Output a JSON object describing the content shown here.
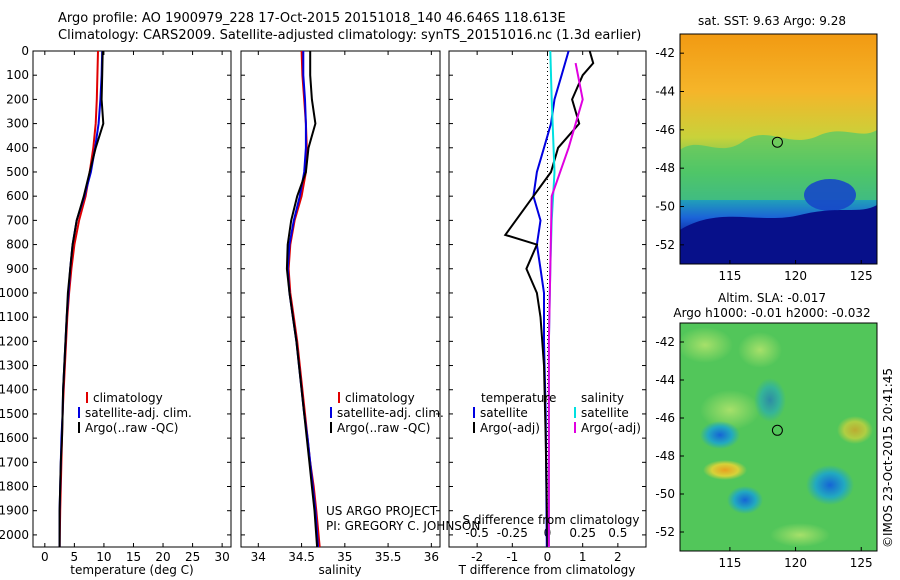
{
  "header": {
    "line1": "Argo profile: AO 1900979_228 17-Oct-2015 20151018_140 46.646S 118.613E",
    "line2": "Climatology: CARS2009. Satellite-adjusted climatology: synTS_20151016.nc (1.3d earlier)"
  },
  "colors": {
    "climatology": "#e00000",
    "satellite": "#0000e0",
    "argo": "#000000",
    "sat_salinity": "#00e0e0",
    "argo_adj_salinity": "#e000e0"
  },
  "chart_data": [
    {
      "type": "line",
      "xlabel": "temperature (deg C)",
      "xticks": [
        "0",
        "5",
        "10",
        "15",
        "20",
        "25",
        "30"
      ],
      "xlim": [
        -2,
        31.5
      ],
      "ylim": [
        0,
        2050
      ],
      "yticks": [
        "0",
        "100",
        "200",
        "300",
        "400",
        "500",
        "600",
        "700",
        "800",
        "900",
        "1000",
        "1100",
        "1200",
        "1300",
        "1400",
        "1500",
        "1600",
        "1700",
        "1800",
        "1900",
        "2000"
      ],
      "legend": [
        "climatology",
        "satellite-adj. clim.",
        "Argo(..raw -QC)"
      ],
      "series": [
        {
          "name": "climatology",
          "color": "#e00000",
          "points": [
            [
              9.0,
              0
            ],
            [
              8.9,
              100
            ],
            [
              8.8,
              200
            ],
            [
              8.6,
              300
            ],
            [
              8.2,
              400
            ],
            [
              7.6,
              500
            ],
            [
              6.9,
              600
            ],
            [
              5.8,
              700
            ],
            [
              5.0,
              800
            ],
            [
              4.5,
              900
            ],
            [
              4.1,
              1000
            ],
            [
              3.8,
              1100
            ],
            [
              3.6,
              1200
            ],
            [
              3.4,
              1300
            ],
            [
              3.2,
              1400
            ],
            [
              3.0,
              1500
            ],
            [
              2.9,
              1600
            ],
            [
              2.8,
              1700
            ],
            [
              2.7,
              1800
            ],
            [
              2.6,
              1900
            ],
            [
              2.5,
              2050
            ]
          ]
        },
        {
          "name": "satellite-adj. clim.",
          "color": "#0000e0",
          "points": [
            [
              9.7,
              0
            ],
            [
              9.6,
              100
            ],
            [
              9.4,
              200
            ],
            [
              9.1,
              300
            ],
            [
              8.5,
              400
            ],
            [
              7.8,
              500
            ],
            [
              6.7,
              600
            ],
            [
              5.4,
              700
            ],
            [
              4.7,
              800
            ],
            [
              4.3,
              900
            ],
            [
              4.0,
              1000
            ],
            [
              3.7,
              1100
            ],
            [
              3.5,
              1200
            ],
            [
              3.3,
              1300
            ],
            [
              3.1,
              1400
            ],
            [
              3.0,
              1500
            ],
            [
              2.8,
              1600
            ],
            [
              2.7,
              1700
            ],
            [
              2.6,
              1800
            ],
            [
              2.5,
              1900
            ],
            [
              2.5,
              2050
            ]
          ]
        },
        {
          "name": "Argo(..raw -QC)",
          "color": "#000000",
          "points": [
            [
              9.8,
              0
            ],
            [
              9.7,
              100
            ],
            [
              9.6,
              200
            ],
            [
              9.9,
              300
            ],
            [
              8.6,
              400
            ],
            [
              7.6,
              500
            ],
            [
              6.6,
              600
            ],
            [
              5.4,
              700
            ],
            [
              4.7,
              800
            ],
            [
              4.3,
              900
            ],
            [
              3.9,
              1000
            ],
            [
              3.7,
              1100
            ],
            [
              3.5,
              1200
            ],
            [
              3.3,
              1300
            ],
            [
              3.1,
              1400
            ],
            [
              3.0,
              1500
            ],
            [
              2.9,
              1600
            ],
            [
              2.7,
              1700
            ],
            [
              2.6,
              1800
            ],
            [
              2.5,
              1900
            ],
            [
              2.5,
              2050
            ]
          ]
        }
      ]
    },
    {
      "type": "line",
      "xlabel": "salinity",
      "xticks": [
        "34",
        "34.5",
        "35",
        "35.5",
        "36"
      ],
      "xlim": [
        33.8,
        36.1
      ],
      "ylim": [
        0,
        2050
      ],
      "legend": [
        "climatology",
        "satellite-adj. clim.",
        "Argo(..raw -QC)"
      ],
      "annotations": [
        "US ARGO PROJECT",
        "PI: GREGORY C. JOHNSON"
      ],
      "series": [
        {
          "name": "climatology",
          "color": "#e00000",
          "points": [
            [
              34.5,
              0
            ],
            [
              34.51,
              100
            ],
            [
              34.53,
              200
            ],
            [
              34.55,
              300
            ],
            [
              34.56,
              400
            ],
            [
              34.55,
              500
            ],
            [
              34.5,
              600
            ],
            [
              34.42,
              700
            ],
            [
              34.37,
              800
            ],
            [
              34.35,
              900
            ],
            [
              34.37,
              1000
            ],
            [
              34.41,
              1100
            ],
            [
              34.45,
              1200
            ],
            [
              34.48,
              1300
            ],
            [
              34.51,
              1400
            ],
            [
              34.54,
              1500
            ],
            [
              34.57,
              1600
            ],
            [
              34.6,
              1700
            ],
            [
              34.64,
              1800
            ],
            [
              34.67,
              1900
            ],
            [
              34.71,
              2050
            ]
          ]
        },
        {
          "name": "satellite-adj. clim.",
          "color": "#0000e0",
          "points": [
            [
              34.52,
              0
            ],
            [
              34.52,
              100
            ],
            [
              34.54,
              200
            ],
            [
              34.55,
              300
            ],
            [
              34.55,
              400
            ],
            [
              34.53,
              500
            ],
            [
              34.48,
              600
            ],
            [
              34.41,
              700
            ],
            [
              34.36,
              800
            ],
            [
              34.34,
              900
            ],
            [
              34.36,
              1000
            ],
            [
              34.4,
              1100
            ],
            [
              34.44,
              1200
            ],
            [
              34.47,
              1300
            ],
            [
              34.5,
              1400
            ],
            [
              34.53,
              1500
            ],
            [
              34.57,
              1600
            ],
            [
              34.6,
              1700
            ],
            [
              34.63,
              1800
            ],
            [
              34.66,
              1900
            ],
            [
              34.69,
              2050
            ]
          ]
        },
        {
          "name": "Argo(..raw -QC)",
          "color": "#000000",
          "points": [
            [
              34.6,
              0
            ],
            [
              34.6,
              100
            ],
            [
              34.62,
              200
            ],
            [
              34.66,
              300
            ],
            [
              34.58,
              400
            ],
            [
              34.55,
              500
            ],
            [
              34.45,
              600
            ],
            [
              34.38,
              700
            ],
            [
              34.34,
              800
            ],
            [
              34.33,
              900
            ],
            [
              34.36,
              1000
            ],
            [
              34.4,
              1100
            ],
            [
              34.44,
              1200
            ],
            [
              34.47,
              1300
            ],
            [
              34.5,
              1400
            ],
            [
              34.53,
              1500
            ],
            [
              34.56,
              1600
            ],
            [
              34.59,
              1700
            ],
            [
              34.62,
              1800
            ],
            [
              34.65,
              1900
            ],
            [
              34.68,
              2050
            ]
          ]
        }
      ]
    },
    {
      "type": "line",
      "xlabel": "T difference from climatology",
      "xticks": [
        "-2",
        "-1",
        "0",
        "1",
        "2"
      ],
      "xlim": [
        -2.8,
        2.8
      ],
      "top_xlabel": "S difference from climatology",
      "top_xticks": [
        "-0.5",
        "-0.25",
        "0",
        "0.25",
        "0.5"
      ],
      "top_xlim": [
        -0.7,
        0.7
      ],
      "ylim": [
        0,
        2050
      ],
      "legend_temperature_title": "temperature",
      "legend_salinity_title": "salinity",
      "legend": [
        "satellite",
        "Argo(-adj)",
        "satellite",
        "Argo(-adj)"
      ],
      "series": [
        {
          "name": "satellite",
          "quantity": "temperature",
          "color": "#0000e0",
          "points": [
            [
              0.6,
              0
            ],
            [
              0.4,
              100
            ],
            [
              0.2,
              200
            ],
            [
              0.1,
              300
            ],
            [
              -0.1,
              400
            ],
            [
              -0.3,
              500
            ],
            [
              -0.4,
              600
            ],
            [
              -0.2,
              700
            ],
            [
              -0.3,
              800
            ],
            [
              -0.2,
              900
            ],
            [
              -0.1,
              1000
            ],
            [
              -0.1,
              1200
            ],
            [
              -0.05,
              1500
            ],
            [
              -0.02,
              2050
            ]
          ]
        },
        {
          "name": "Argo(-adj)",
          "quantity": "temperature",
          "color": "#000000",
          "points": [
            [
              1.2,
              0
            ],
            [
              1.3,
              50
            ],
            [
              1.0,
              100
            ],
            [
              0.7,
              200
            ],
            [
              0.9,
              300
            ],
            [
              0.3,
              400
            ],
            [
              0.1,
              500
            ],
            [
              -0.4,
              600
            ],
            [
              -1.2,
              760
            ],
            [
              -0.3,
              800
            ],
            [
              -0.6,
              900
            ],
            [
              -0.3,
              1000
            ],
            [
              -0.2,
              1100
            ],
            [
              -0.1,
              1300
            ],
            [
              -0.05,
              1600
            ],
            [
              0.0,
              2050
            ]
          ]
        },
        {
          "name": "satellite",
          "quantity": "salinity",
          "color": "#00e0e0",
          "points": [
            [
              0.02,
              0
            ],
            [
              0.03,
              200
            ],
            [
              0.05,
              500
            ],
            [
              0.03,
              700
            ],
            [
              0.02,
              900
            ],
            [
              0.01,
              1200
            ],
            [
              0.01,
              2050
            ]
          ]
        },
        {
          "name": "Argo(-adj)",
          "quantity": "salinity",
          "color": "#e000e0",
          "points": [
            [
              0.2,
              50
            ],
            [
              0.25,
              200
            ],
            [
              0.15,
              400
            ],
            [
              0.03,
              600
            ],
            [
              0.02,
              900
            ],
            [
              0.01,
              1200
            ],
            [
              0.01,
              2050
            ]
          ]
        }
      ]
    }
  ],
  "maps": {
    "sst_title": "sat. SST: 9.63 Argo: 9.28",
    "sla_title_line1": "Altim. SLA: -0.017",
    "sla_title_line2": "Argo h1000: -0.01 h2000: -0.032",
    "yticks": [
      "-42",
      "-44",
      "-46",
      "-48",
      "-50",
      "-52"
    ],
    "xticks": [
      "115",
      "120",
      "125"
    ],
    "float_lon": 118.613,
    "float_lat": -46.646
  },
  "footer": "©IMOS 23-Oct-2015 20:41:45"
}
